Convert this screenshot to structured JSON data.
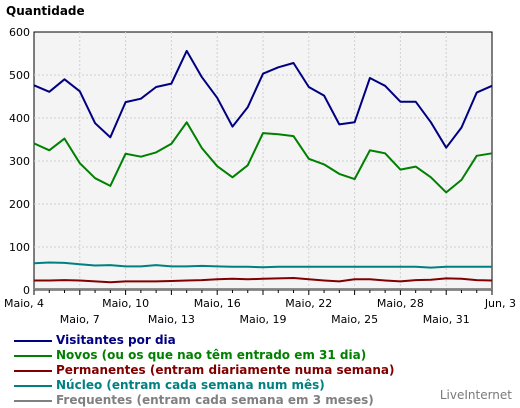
{
  "chart_data": {
    "type": "line",
    "title": "Quantidade",
    "ylim": [
      0,
      600
    ],
    "yticks": [
      0,
      100,
      200,
      300,
      400,
      500,
      600
    ],
    "grid": true,
    "x": [
      "Maio, 4",
      "Maio, 5",
      "Maio, 6",
      "Maio, 7",
      "Maio, 8",
      "Maio, 9",
      "Maio, 10",
      "Maio, 11",
      "Maio, 12",
      "Maio, 13",
      "Maio, 14",
      "Maio, 15",
      "Maio, 16",
      "Maio, 17",
      "Maio, 18",
      "Maio, 19",
      "Maio, 20",
      "Maio, 21",
      "Maio, 22",
      "Maio, 23",
      "Maio, 24",
      "Maio, 25",
      "Maio, 26",
      "Maio, 27",
      "Maio, 28",
      "Maio, 29",
      "Maio, 30",
      "Maio, 31",
      "Jun, 1",
      "Jun, 2",
      "Jun, 3"
    ],
    "tick_labels_row1": [
      {
        "text": "Maio, 4",
        "index": 0
      },
      {
        "text": "Maio, 10",
        "index": 6
      },
      {
        "text": "Maio, 16",
        "index": 12
      },
      {
        "text": "Maio, 22",
        "index": 18
      },
      {
        "text": "Maio, 28",
        "index": 24
      },
      {
        "text": "Jun, 3",
        "index": 30
      }
    ],
    "tick_labels_row2": [
      {
        "text": "Maio, 7",
        "index": 3
      },
      {
        "text": "Maio, 13",
        "index": 9
      },
      {
        "text": "Maio, 19",
        "index": 15
      },
      {
        "text": "Maio, 25",
        "index": 21
      },
      {
        "text": "Maio, 31",
        "index": 27
      }
    ],
    "series": [
      {
        "name": "Visitantes por dia",
        "color": "#000080",
        "values": [
          476,
          461,
          490,
          462,
          388,
          355,
          437,
          445,
          472,
          480,
          556,
          495,
          447,
          380,
          425,
          503,
          518,
          528,
          472,
          452,
          385,
          390,
          493,
          475,
          438,
          438,
          390,
          331,
          378,
          459,
          475
        ]
      },
      {
        "name": "Novos (ou os que nao têm entrado em 31 dia)",
        "color": "#008000",
        "values": [
          341,
          325,
          352,
          295,
          260,
          242,
          317,
          310,
          320,
          340,
          390,
          330,
          288,
          262,
          290,
          365,
          362,
          358,
          305,
          292,
          270,
          258,
          325,
          318,
          280,
          287,
          262,
          227,
          256,
          312,
          318
        ]
      },
      {
        "name": "Permanentes (entram diariamente numa semana)",
        "color": "#800000",
        "values": [
          22,
          22,
          23,
          22,
          20,
          18,
          20,
          20,
          20,
          21,
          22,
          23,
          25,
          26,
          25,
          26,
          27,
          28,
          25,
          22,
          20,
          25,
          25,
          22,
          20,
          23,
          24,
          27,
          26,
          23,
          22
        ]
      },
      {
        "name": "Núcleo (entram cada semana num mês)",
        "color": "#008080",
        "values": [
          62,
          64,
          63,
          60,
          57,
          58,
          55,
          55,
          58,
          55,
          55,
          56,
          55,
          54,
          54,
          53,
          54,
          54,
          54,
          54,
          54,
          54,
          54,
          54,
          54,
          54,
          52,
          54,
          54,
          54,
          54
        ]
      },
      {
        "name": "Frequentes (entram cada semana em 3 meses)",
        "color": "#808080",
        "values": [
          2,
          2,
          2,
          2,
          2,
          2,
          2,
          2,
          2,
          2,
          2,
          2,
          2,
          2,
          2,
          2,
          2,
          2,
          2,
          2,
          2,
          2,
          2,
          2,
          2,
          2,
          2,
          2,
          2,
          2,
          2
        ]
      }
    ]
  },
  "legend": [
    {
      "label": "Visitantes por dia",
      "color": "#000080"
    },
    {
      "label": "Novos (ou os que nao têm entrado em 31 dia)",
      "color": "#008000"
    },
    {
      "label": "Permanentes (entram diariamente numa semana)",
      "color": "#800000"
    },
    {
      "label": "Núcleo (entram cada semana num mês)",
      "color": "#008080"
    },
    {
      "label": "Frequentes (entram cada semana em 3 meses)",
      "color": "#808080"
    }
  ],
  "brand": "LiveInternet"
}
